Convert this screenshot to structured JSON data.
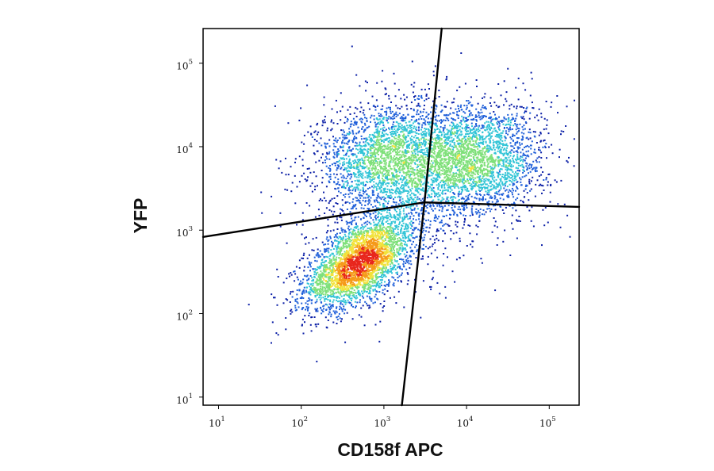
{
  "chart_data": {
    "type": "scatter",
    "title": "",
    "xlabel": "CD158f APC",
    "ylabel": "YFP",
    "xscale": "log",
    "yscale": "log",
    "xlim": [
      6.5,
      230000
    ],
    "ylim": [
      8,
      260000
    ],
    "grid": false,
    "legend": "none",
    "x_ticks": [
      {
        "value": 10,
        "base": "10",
        "exp": "1"
      },
      {
        "value": 100,
        "base": "10",
        "exp": "2"
      },
      {
        "value": 1000,
        "base": "10",
        "exp": "3"
      },
      {
        "value": 10000,
        "base": "10",
        "exp": "4"
      },
      {
        "value": 100000,
        "base": "10",
        "exp": "5"
      }
    ],
    "y_ticks": [
      {
        "value": 10,
        "base": "10",
        "exp": "1"
      },
      {
        "value": 100,
        "base": "10",
        "exp": "2"
      },
      {
        "value": 1000,
        "base": "10",
        "exp": "3"
      },
      {
        "value": 10000,
        "base": "10",
        "exp": "4"
      },
      {
        "value": 100000,
        "base": "10",
        "exp": "5"
      }
    ],
    "density_colormap": [
      "#0a1ea6",
      "#1f5fd9",
      "#31c4d6",
      "#7fe07a",
      "#f2e23a",
      "#f59a1a",
      "#e8261c"
    ],
    "quadrant_gates": {
      "center": [
        3100,
        2150
      ],
      "horizontal_left": [
        [
          6.5,
          830
        ],
        [
          3100,
          2150
        ]
      ],
      "horizontal_right": [
        [
          3100,
          2150
        ],
        [
          230000,
          1900
        ]
      ],
      "vertical_top": [
        [
          3100,
          2150
        ],
        [
          5000,
          260000
        ]
      ],
      "vertical_bottom": [
        [
          1650,
          8
        ],
        [
          3100,
          2150
        ]
      ]
    },
    "populations": [
      {
        "center": [
          500,
          400
        ],
        "spread_decades": [
          0.33,
          0.27
        ],
        "correlation": 0.55,
        "count": 3200
      },
      {
        "center": [
          1100,
          7000
        ],
        "spread_decades": [
          0.42,
          0.35
        ],
        "correlation": 0.1,
        "count": 2300
      },
      {
        "center": [
          13000,
          7000
        ],
        "spread_decades": [
          0.42,
          0.34
        ],
        "correlation": 0.05,
        "count": 2500
      },
      {
        "center": [
          1800,
          1800
        ],
        "spread_decades": [
          0.55,
          0.55
        ],
        "correlation": 0.2,
        "count": 500
      }
    ]
  }
}
